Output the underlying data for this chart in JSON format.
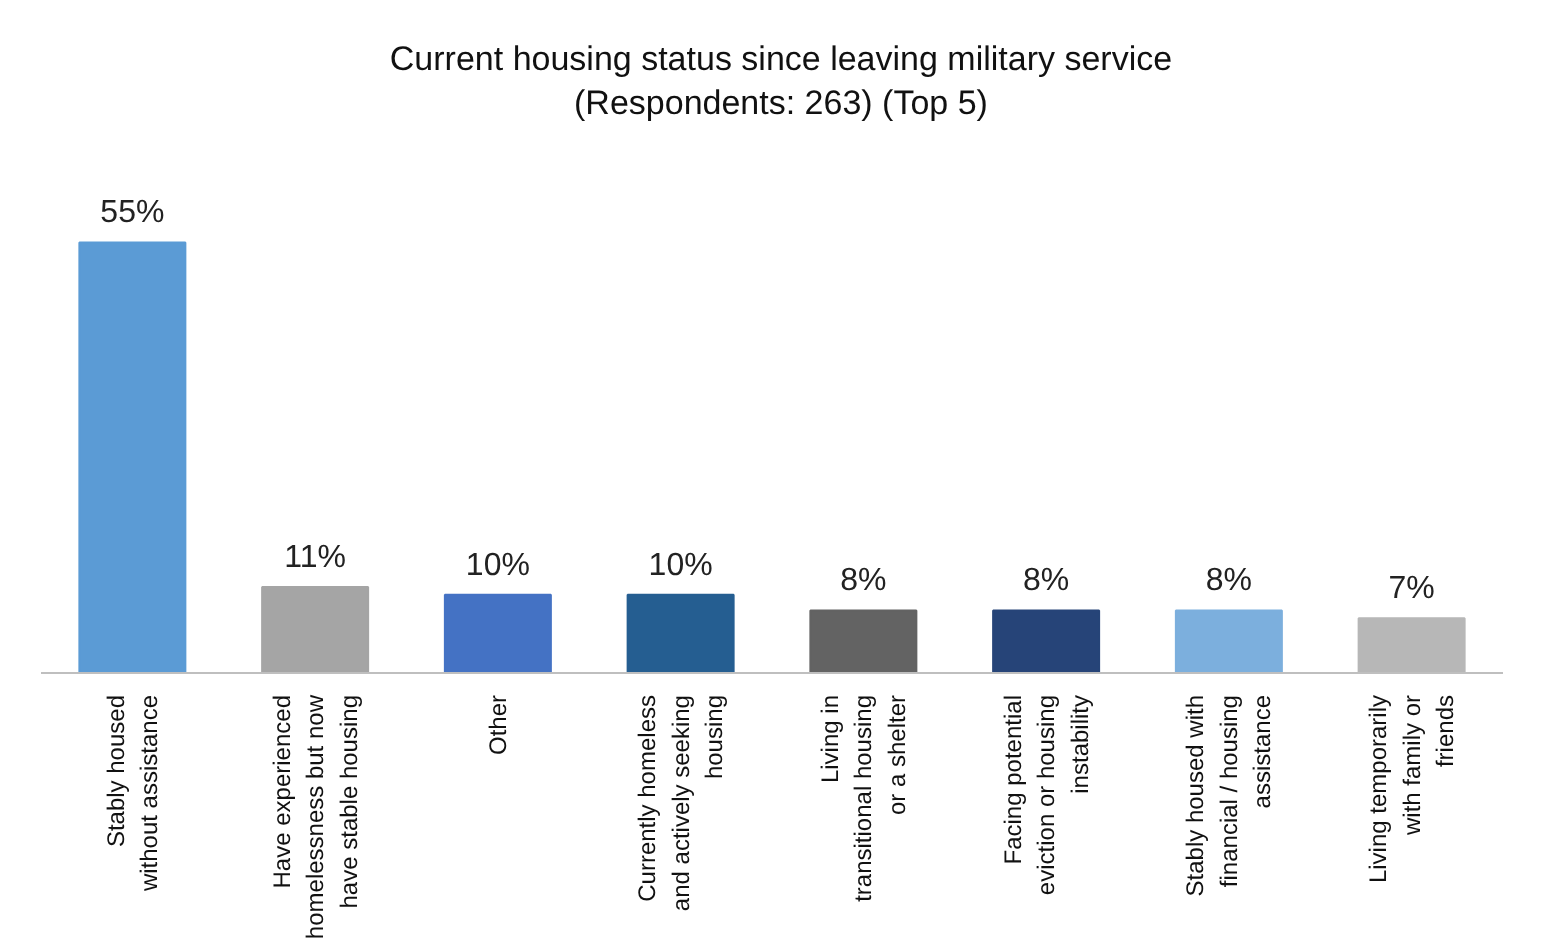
{
  "chart_data": {
    "type": "bar",
    "title": "Current housing status since leaving military service\n(Respondents: 263) (Top 5)",
    "categories": [
      "Stably housed without assistance",
      "Have experienced homelessness but now have stable housing",
      "Other",
      "Currently homeless and actively seeking housing",
      "Living in transitional housing or a shelter",
      "Facing potential eviction or housing instability",
      "Stably housed with financial / housing assistance",
      "Living temporarily with family or friends"
    ],
    "values": [
      55,
      11,
      10,
      10,
      8,
      8,
      8,
      7
    ],
    "colors": [
      "#5b9bd5",
      "#a5a5a5",
      "#4472c4",
      "#255e91",
      "#636363",
      "#264478",
      "#7cafdd",
      "#b7b7b7"
    ],
    "value_labels": [
      "55%",
      "11%",
      "10%",
      "10%",
      "8%",
      "8%",
      "8%",
      "7%"
    ],
    "legend": false
  }
}
